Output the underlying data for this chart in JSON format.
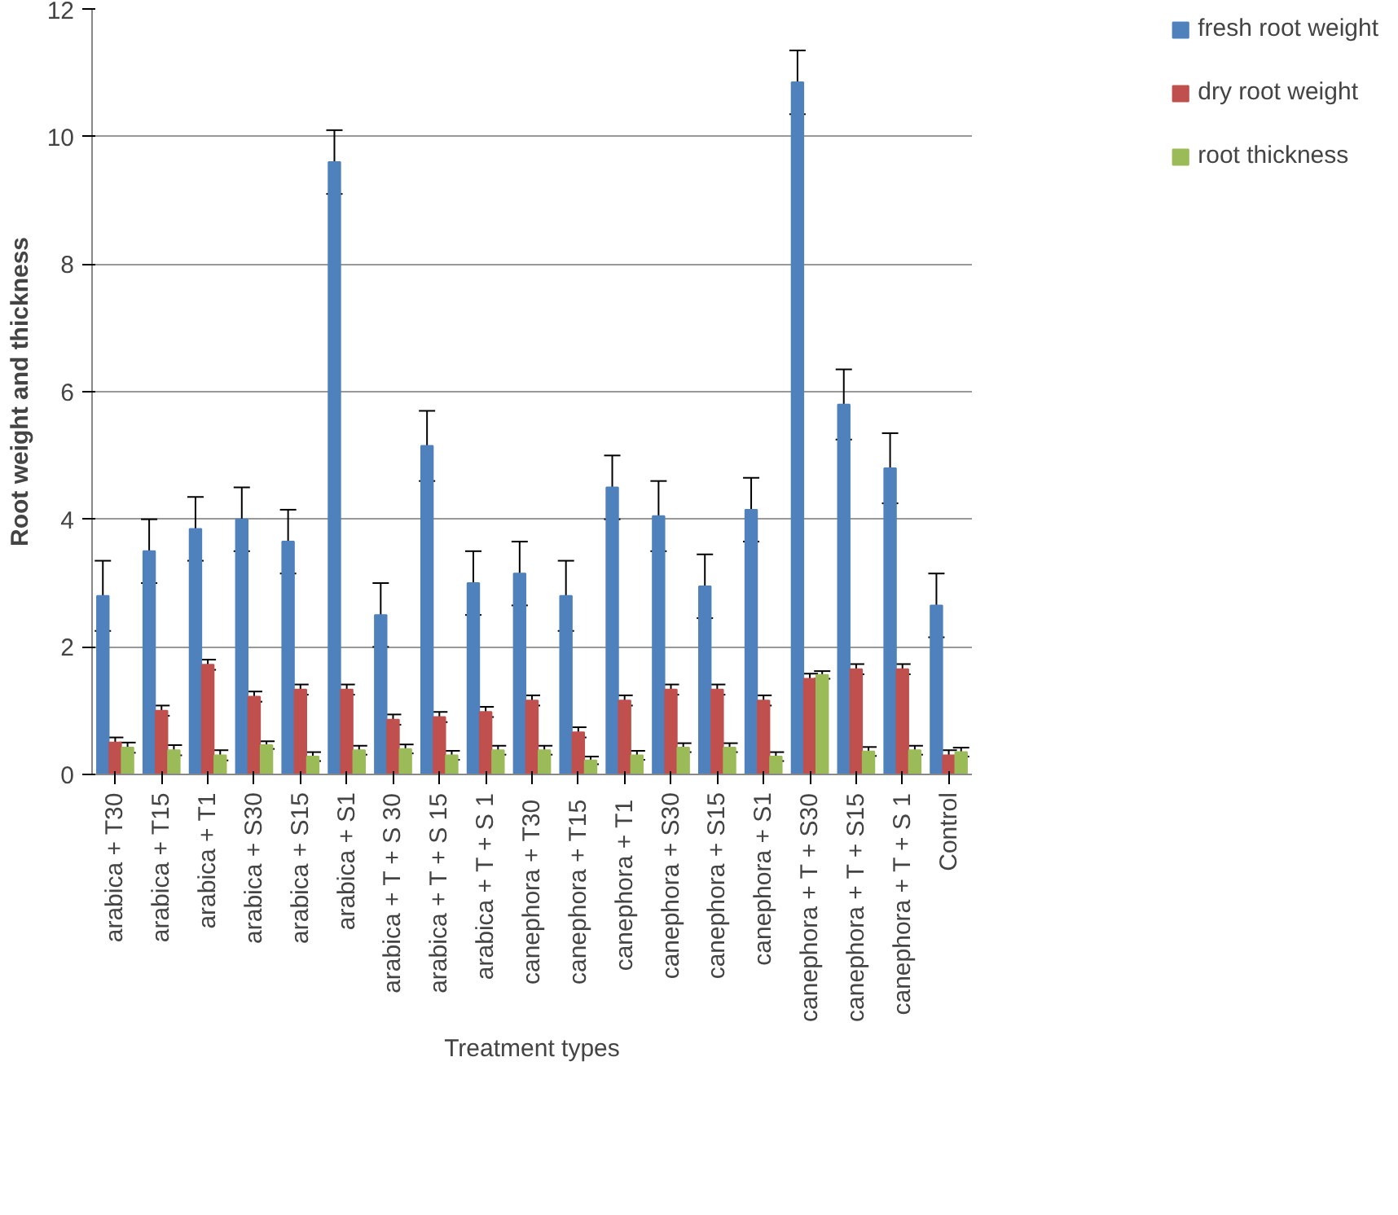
{
  "chart_data": {
    "type": "bar",
    "xlabel": "Treatment types",
    "ylabel": "Root weight and thickness",
    "categories": [
      "arabica + T30",
      "arabica + T15",
      "arabica + T1",
      "arabica + S30",
      "arabica + S15",
      "arabica + S1",
      "arabica + T + S 30",
      "arabica + T + S 15",
      "arabica + T + S 1",
      "canephora  + T30",
      "canephora  + T15",
      "canephora  + T1",
      "canephora + S30",
      "canephora + S15",
      "canephora + S1",
      "canephora + T + S30",
      "canephora + T + S15",
      "canephora + T + S 1",
      "Control"
    ],
    "series": [
      {
        "name": "fresh root weight",
        "color": "#4f81bd",
        "values": [
          2.8,
          3.5,
          3.85,
          4.0,
          3.65,
          9.6,
          2.5,
          5.15,
          3.0,
          3.15,
          2.8,
          4.5,
          4.05,
          2.95,
          4.15,
          10.85,
          5.8,
          4.8,
          2.65
        ],
        "errors": [
          0.55,
          0.5,
          0.5,
          0.5,
          0.5,
          0.5,
          0.5,
          0.55,
          0.5,
          0.5,
          0.55,
          0.5,
          0.55,
          0.5,
          0.5,
          0.5,
          0.55,
          0.55,
          0.5
        ]
      },
      {
        "name": "dry root weight",
        "color": "#c0504d",
        "values": [
          0.5,
          1.0,
          1.72,
          1.22,
          1.33,
          1.33,
          0.86,
          0.9,
          0.98,
          1.16,
          0.66,
          1.16,
          1.33,
          1.33,
          1.16,
          1.5,
          1.65,
          1.65,
          0.3
        ],
        "errors": [
          0.08,
          0.08,
          0.08,
          0.08,
          0.08,
          0.08,
          0.08,
          0.08,
          0.08,
          0.08,
          0.08,
          0.08,
          0.08,
          0.08,
          0.08,
          0.08,
          0.08,
          0.08,
          0.08
        ]
      },
      {
        "name": "root thickness",
        "color": "#9bbb59",
        "values": [
          0.42,
          0.38,
          0.3,
          0.46,
          0.28,
          0.38,
          0.4,
          0.3,
          0.38,
          0.38,
          0.22,
          0.3,
          0.42,
          0.42,
          0.28,
          1.56,
          0.36,
          0.38,
          0.35
        ],
        "errors": [
          0.08,
          0.08,
          0.08,
          0.06,
          0.07,
          0.07,
          0.07,
          0.07,
          0.07,
          0.07,
          0.06,
          0.07,
          0.07,
          0.07,
          0.07,
          0.06,
          0.07,
          0.07,
          0.07
        ]
      }
    ],
    "ylim": [
      0,
      12
    ],
    "yticks": [
      0,
      2,
      4,
      6,
      8,
      10,
      12
    ],
    "grid": "y",
    "legend": "right"
  }
}
